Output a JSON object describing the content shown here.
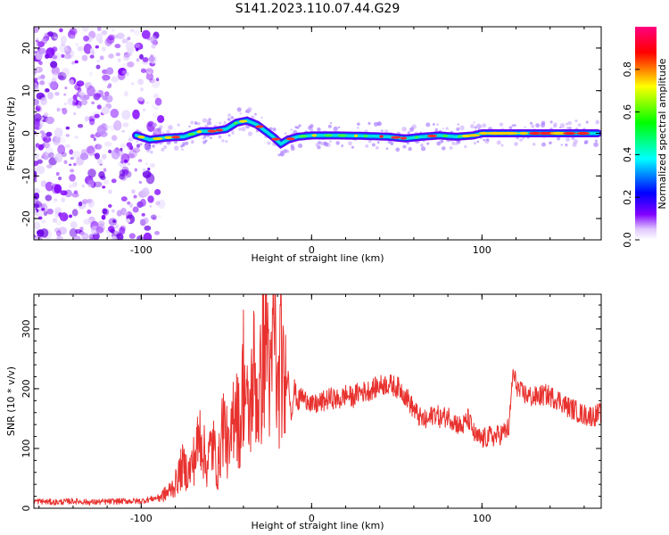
{
  "title": "S141.2023.110.07.44.G29",
  "chart_data": [
    {
      "type": "heatmap",
      "xlabel": "Height of straight line (km)",
      "ylabel": "Frequency (Hz)",
      "xlim": [
        -163,
        170
      ],
      "ylim": [
        -25,
        25
      ],
      "xticks": [
        -100,
        0,
        100
      ],
      "yticks": [
        -20,
        -10,
        0,
        10,
        20
      ],
      "colorbar": {
        "label": "Normalized spectral amplitude",
        "range": [
          0.0,
          1.0
        ],
        "ticks": [
          0.0,
          0.2,
          0.4,
          0.6,
          0.8
        ],
        "colors": [
          "#ffffff",
          "#e0c8ff",
          "#8000ff",
          "#0000ff",
          "#00ffff",
          "#00ff00",
          "#ffff00",
          "#ff0000",
          "#ff0080"
        ]
      },
      "ridge": {
        "x": [
          -103,
          -95,
          -85,
          -75,
          -65,
          -58,
          -50,
          -44,
          -38,
          -32,
          -27,
          -22,
          -18,
          -14,
          -8,
          0,
          15,
          30,
          45,
          55,
          65,
          75,
          85,
          95,
          100,
          110,
          130,
          150,
          168
        ],
        "y": [
          -0.5,
          -1.5,
          -1.0,
          -0.8,
          0.5,
          0.5,
          1.0,
          2.5,
          3.0,
          2.0,
          0.5,
          -1.0,
          -2.5,
          -1.5,
          -0.8,
          -0.5,
          -0.5,
          -0.6,
          -0.8,
          -1.2,
          -0.8,
          -0.5,
          -0.8,
          -0.5,
          0.0,
          0.0,
          0.0,
          0.0,
          0.0
        ]
      }
    },
    {
      "type": "line",
      "xlabel": "Height of straight line (km)",
      "ylabel": "SNR (10 * v/v)",
      "xlim": [
        -163,
        170
      ],
      "ylim": [
        0,
        358
      ],
      "xticks": [
        -100,
        0,
        100
      ],
      "yticks": [
        0,
        100,
        200,
        300
      ],
      "color": "#e8322f",
      "series": [
        {
          "x": [
            -163,
            -150,
            -140,
            -130,
            -120,
            -110,
            -100,
            -95,
            -90,
            -85,
            -80,
            -76,
            -72,
            -68,
            -65,
            -62,
            -58,
            -55,
            -52,
            -48,
            -45,
            -42,
            -40,
            -37,
            -34,
            -31,
            -28,
            -26,
            -24,
            -22,
            -20,
            -18,
            -16,
            -14,
            -12,
            -10,
            -8,
            -6,
            -4,
            -2,
            0,
            4,
            8,
            12,
            16,
            20,
            24,
            28,
            32,
            36,
            40,
            44,
            48,
            52,
            56,
            60,
            64,
            68,
            72,
            76,
            80,
            84,
            88,
            92,
            96,
            100,
            104,
            108,
            112,
            116,
            118,
            122,
            126,
            130,
            134,
            138,
            142,
            146,
            150,
            154,
            158,
            162,
            166,
            170
          ],
          "y": [
            12,
            10,
            12,
            10,
            11,
            12,
            12,
            15,
            18,
            25,
            40,
            70,
            60,
            90,
            130,
            70,
            110,
            60,
            150,
            80,
            200,
            120,
            230,
            140,
            230,
            170,
            270,
            300,
            180,
            330,
            175,
            260,
            180,
            230,
            160,
            200,
            175,
            190,
            180,
            185,
            170,
            175,
            180,
            185,
            180,
            190,
            185,
            195,
            195,
            200,
            205,
            208,
            205,
            200,
            185,
            165,
            150,
            145,
            160,
            150,
            155,
            145,
            135,
            150,
            120,
            115,
            120,
            120,
            125,
            135,
            225,
            195,
            190,
            185,
            188,
            190,
            185,
            180,
            170,
            165,
            158,
            155,
            155,
            160
          ]
        }
      ]
    }
  ]
}
